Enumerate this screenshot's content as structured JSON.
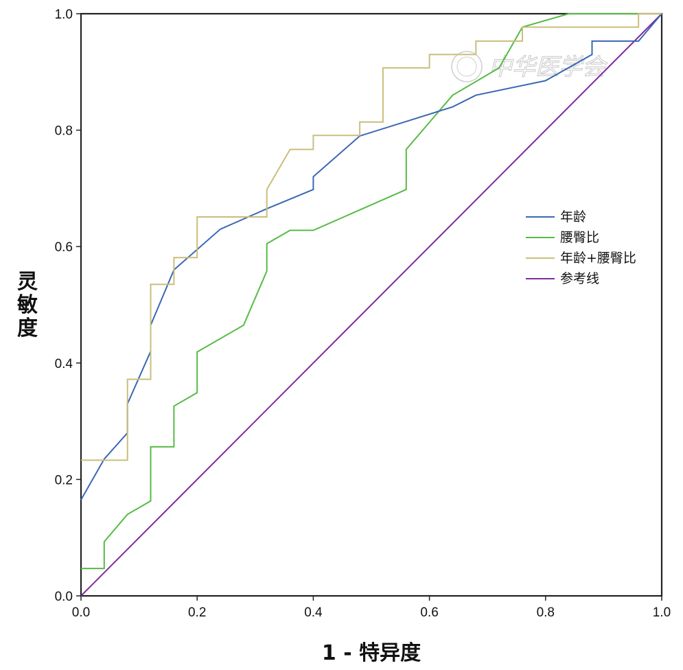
{
  "chart_data": {
    "type": "line",
    "xlabel": "1 - 特异度",
    "ylabel": "灵敏度",
    "xlim": [
      0,
      1
    ],
    "ylim": [
      0,
      1
    ],
    "x_ticks": [
      "0.0",
      "0.2",
      "0.4",
      "0.6",
      "0.8",
      "1.0"
    ],
    "y_ticks": [
      "0.0",
      "0.2",
      "0.4",
      "0.6",
      "0.8",
      "1.0"
    ],
    "grid": false,
    "legend_position": "right",
    "watermark": "中华医学会",
    "series": [
      {
        "name": "年龄",
        "color": "#3a66b5",
        "points": [
          [
            0,
            0.165
          ],
          [
            0.04,
            0.235
          ],
          [
            0.08,
            0.28
          ],
          [
            0.08,
            0.33
          ],
          [
            0.12,
            0.42
          ],
          [
            0.12,
            0.465
          ],
          [
            0.16,
            0.56
          ],
          [
            0.24,
            0.63
          ],
          [
            0.32,
            0.665
          ],
          [
            0.4,
            0.698
          ],
          [
            0.4,
            0.72
          ],
          [
            0.48,
            0.79
          ],
          [
            0.56,
            0.815
          ],
          [
            0.64,
            0.84
          ],
          [
            0.68,
            0.86
          ],
          [
            0.8,
            0.885
          ],
          [
            0.88,
            0.93
          ],
          [
            0.88,
            0.953
          ],
          [
            0.96,
            0.953
          ],
          [
            1,
            1
          ]
        ]
      },
      {
        "name": "腰臀比",
        "color": "#55bb44",
        "points": [
          [
            0,
            0.047
          ],
          [
            0.04,
            0.047
          ],
          [
            0.04,
            0.093
          ],
          [
            0.08,
            0.14
          ],
          [
            0.12,
            0.163
          ],
          [
            0.12,
            0.256
          ],
          [
            0.16,
            0.256
          ],
          [
            0.16,
            0.326
          ],
          [
            0.2,
            0.349
          ],
          [
            0.2,
            0.419
          ],
          [
            0.28,
            0.465
          ],
          [
            0.32,
            0.558
          ],
          [
            0.32,
            0.605
          ],
          [
            0.36,
            0.628
          ],
          [
            0.4,
            0.628
          ],
          [
            0.56,
            0.698
          ],
          [
            0.56,
            0.767
          ],
          [
            0.64,
            0.86
          ],
          [
            0.72,
            0.907
          ],
          [
            0.76,
            0.977
          ],
          [
            0.84,
            1
          ],
          [
            1,
            1
          ]
        ]
      },
      {
        "name": "年龄+腰臀比",
        "color": "#c9be7a",
        "points": [
          [
            0,
            0.233
          ],
          [
            0.08,
            0.233
          ],
          [
            0.08,
            0.372
          ],
          [
            0.12,
            0.372
          ],
          [
            0.12,
            0.535
          ],
          [
            0.16,
            0.535
          ],
          [
            0.16,
            0.581
          ],
          [
            0.2,
            0.581
          ],
          [
            0.2,
            0.651
          ],
          [
            0.32,
            0.651
          ],
          [
            0.32,
            0.698
          ],
          [
            0.36,
            0.767
          ],
          [
            0.4,
            0.767
          ],
          [
            0.4,
            0.791
          ],
          [
            0.48,
            0.791
          ],
          [
            0.48,
            0.814
          ],
          [
            0.52,
            0.814
          ],
          [
            0.52,
            0.907
          ],
          [
            0.6,
            0.907
          ],
          [
            0.6,
            0.93
          ],
          [
            0.68,
            0.93
          ],
          [
            0.68,
            0.953
          ],
          [
            0.76,
            0.953
          ],
          [
            0.76,
            0.977
          ],
          [
            0.96,
            0.977
          ],
          [
            0.96,
            1
          ],
          [
            1,
            1
          ]
        ]
      },
      {
        "name": "参考线",
        "color": "#7d2a9a",
        "points": [
          [
            0,
            0
          ],
          [
            1,
            1
          ]
        ]
      }
    ]
  }
}
